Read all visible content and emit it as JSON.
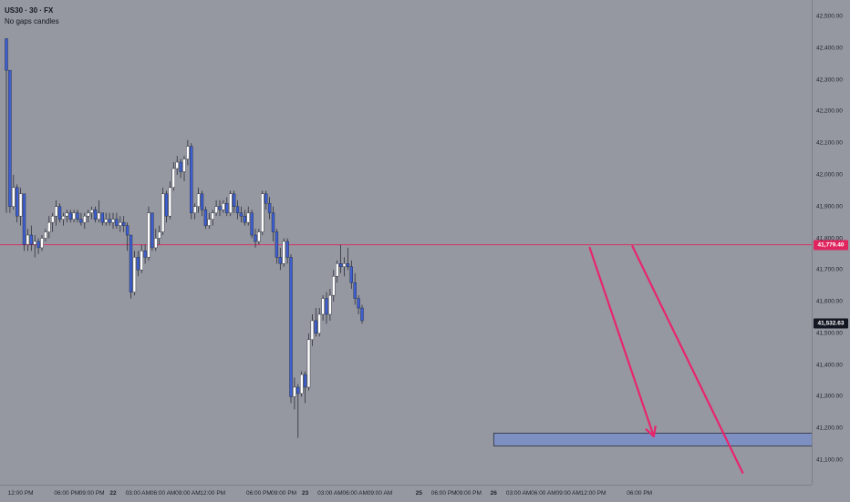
{
  "legend": {
    "symbol": "US30 · 30 · FX",
    "subtitle": "No gaps candles"
  },
  "colors": {
    "background": "#9598a1",
    "bull_candle": "#ffffff",
    "bear_candle": "#3d5fd1",
    "wick": "#1e222d",
    "level_line": "#e0245e",
    "arrow": "#e8256c",
    "zone_fill": "#7e8fc2",
    "zone_border": "#1e222d"
  },
  "price_axis": {
    "ticks": [
      "42,500.00",
      "42,400.00",
      "42,300.00",
      "42,200.00",
      "42,100.00",
      "42,000.00",
      "41,900.00",
      "41,800.00",
      "41,700.00",
      "41,600.00",
      "41,500.00",
      "41,400.00",
      "41,300.00",
      "41,200.00",
      "41,100.00"
    ],
    "tick_values": [
      42500,
      42400,
      42300,
      42200,
      42100,
      42000,
      41900,
      41800,
      41700,
      41600,
      41500,
      41400,
      41300,
      41200,
      41100
    ],
    "level_label": "41,779.40",
    "level_value": 41779.4,
    "last_label": "41,532.63",
    "last_value": 41532.63
  },
  "time_axis": {
    "labels": [
      "12:00 PM",
      "06:00 PM",
      "09:00 PM",
      "22",
      "03:00 AM",
      "06:00 AM",
      "09:00 AM",
      "12:00 PM",
      "06:00 PM",
      "09:00 PM",
      "23",
      "03:00 AM",
      "06:00 AM",
      "09:00 AM",
      "25",
      "06:00 PM",
      "09:00 PM",
      "26",
      "03:00 AM",
      "06:00 AM",
      "09:00 AM",
      "12:00 PM",
      "06:00 PM"
    ],
    "bar_index": [
      4,
      17,
      24,
      30,
      37,
      44,
      51,
      58,
      71,
      78,
      84,
      91,
      98,
      105,
      116,
      123,
      130,
      137,
      144,
      151,
      158,
      165,
      178
    ]
  },
  "chart_data": {
    "type": "candlestick",
    "symbol": "US30",
    "interval": "30",
    "level": 41779.4,
    "last_price": 41532.63,
    "candles": [
      [
        42430,
        42430,
        41880,
        42330
      ],
      [
        42330,
        42330,
        41880,
        41900
      ],
      [
        41900,
        42000,
        41890,
        41960
      ],
      [
        41960,
        41970,
        41850,
        41870
      ],
      [
        41870,
        41960,
        41840,
        41940
      ],
      [
        41940,
        41940,
        41760,
        41780
      ],
      [
        41780,
        41830,
        41760,
        41810
      ],
      [
        41810,
        41840,
        41760,
        41780
      ],
      [
        41780,
        41810,
        41740,
        41790
      ],
      [
        41790,
        41800,
        41750,
        41770
      ],
      [
        41770,
        41810,
        41760,
        41800
      ],
      [
        41800,
        41830,
        41790,
        41820
      ],
      [
        41820,
        41870,
        41800,
        41850
      ],
      [
        41850,
        41880,
        41820,
        41870
      ],
      [
        41870,
        41920,
        41840,
        41900
      ],
      [
        41900,
        41910,
        41850,
        41860
      ],
      [
        41860,
        41880,
        41840,
        41870
      ],
      [
        41870,
        41890,
        41850,
        41880
      ],
      [
        41880,
        41890,
        41850,
        41860
      ],
      [
        41860,
        41890,
        41850,
        41880
      ],
      [
        41880,
        41890,
        41850,
        41860
      ],
      [
        41860,
        41880,
        41840,
        41850
      ],
      [
        41850,
        41880,
        41830,
        41870
      ],
      [
        41870,
        41890,
        41850,
        41880
      ],
      [
        41880,
        41900,
        41860,
        41890
      ],
      [
        41890,
        41900,
        41850,
        41860
      ],
      [
        41860,
        41920,
        41850,
        41880
      ],
      [
        41880,
        41880,
        41840,
        41850
      ],
      [
        41850,
        41880,
        41840,
        41860
      ],
      [
        41860,
        41880,
        41840,
        41850
      ],
      [
        41850,
        41880,
        41830,
        41860
      ],
      [
        41860,
        41880,
        41830,
        41840
      ],
      [
        41840,
        41870,
        41820,
        41850
      ],
      [
        41850,
        41870,
        41820,
        41840
      ],
      [
        41840,
        41850,
        41760,
        41810
      ],
      [
        41810,
        41810,
        41610,
        41630
      ],
      [
        41630,
        41760,
        41620,
        41740
      ],
      [
        41740,
        41760,
        41680,
        41700
      ],
      [
        41700,
        41780,
        41690,
        41760
      ],
      [
        41760,
        41780,
        41720,
        41740
      ],
      [
        41740,
        41900,
        41730,
        41880
      ],
      [
        41880,
        41880,
        41760,
        41770
      ],
      [
        41770,
        41830,
        41760,
        41800
      ],
      [
        41800,
        41840,
        41780,
        41820
      ],
      [
        41820,
        41960,
        41810,
        41940
      ],
      [
        41940,
        41950,
        41850,
        41870
      ],
      [
        41870,
        41980,
        41860,
        41960
      ],
      [
        41960,
        42040,
        41950,
        42020
      ],
      [
        42020,
        42060,
        42000,
        42040
      ],
      [
        42040,
        42050,
        41990,
        42010
      ],
      [
        42010,
        42060,
        41980,
        42050
      ],
      [
        42050,
        42110,
        42030,
        42090
      ],
      [
        42090,
        42100,
        41860,
        41880
      ],
      [
        41880,
        41910,
        41860,
        41900
      ],
      [
        41900,
        41960,
        41880,
        41940
      ],
      [
        41940,
        41950,
        41870,
        41890
      ],
      [
        41890,
        41900,
        41830,
        41840
      ],
      [
        41840,
        41880,
        41830,
        41860
      ],
      [
        41860,
        41890,
        41840,
        41880
      ],
      [
        41880,
        41920,
        41870,
        41900
      ],
      [
        41900,
        41920,
        41870,
        41890
      ],
      [
        41890,
        41920,
        41880,
        41910
      ],
      [
        41910,
        41930,
        41870,
        41880
      ],
      [
        41880,
        41950,
        41870,
        41940
      ],
      [
        41940,
        41950,
        41880,
        41900
      ],
      [
        41900,
        41920,
        41860,
        41880
      ],
      [
        41880,
        41900,
        41850,
        41870
      ],
      [
        41870,
        41890,
        41840,
        41850
      ],
      [
        41850,
        41900,
        41840,
        41880
      ],
      [
        41880,
        41890,
        41800,
        41810
      ],
      [
        41810,
        41830,
        41770,
        41790
      ],
      [
        41790,
        41830,
        41780,
        41820
      ],
      [
        41820,
        41950,
        41810,
        41940
      ],
      [
        41940,
        41950,
        41890,
        41910
      ],
      [
        41910,
        41930,
        41860,
        41880
      ],
      [
        41880,
        41900,
        41790,
        41820
      ],
      [
        41820,
        41830,
        41720,
        41740
      ],
      [
        41740,
        41770,
        41700,
        41720
      ],
      [
        41720,
        41800,
        41710,
        41790
      ],
      [
        41790,
        41800,
        41720,
        41740
      ],
      [
        41740,
        41750,
        41280,
        41300
      ],
      [
        41300,
        41360,
        41260,
        41330
      ],
      [
        41330,
        41340,
        41170,
        41310
      ],
      [
        41310,
        41380,
        41300,
        41370
      ],
      [
        41370,
        41380,
        41280,
        41330
      ],
      [
        41330,
        41500,
        41320,
        41480
      ],
      [
        41480,
        41560,
        41460,
        41540
      ],
      [
        41540,
        41580,
        41490,
        41500
      ],
      [
        41500,
        41580,
        41490,
        41560
      ],
      [
        41560,
        41620,
        41540,
        41610
      ],
      [
        41610,
        41630,
        41530,
        41560
      ],
      [
        41560,
        41640,
        41540,
        41620
      ],
      [
        41620,
        41700,
        41600,
        41680
      ],
      [
        41680,
        41730,
        41660,
        41720
      ],
      [
        41720,
        41780,
        41690,
        41710
      ],
      [
        41710,
        41740,
        41680,
        41720
      ],
      [
        41720,
        41770,
        41700,
        41710
      ],
      [
        41710,
        41730,
        41640,
        41660
      ],
      [
        41660,
        41690,
        41590,
        41610
      ],
      [
        41610,
        41620,
        41560,
        41580
      ],
      [
        41580,
        41590,
        41530,
        41540
      ]
    ],
    "zone": {
      "from_bar": 137,
      "to_bar": 227,
      "top": 41185,
      "bottom": 41145
    },
    "arrows": [
      {
        "from_bar": 164,
        "from_price": 41770,
        "to_bar": 182,
        "to_price": 41175
      },
      {
        "from_bar": 176,
        "from_price": 41775,
        "to_bar": 207,
        "to_price": 41060
      }
    ]
  }
}
